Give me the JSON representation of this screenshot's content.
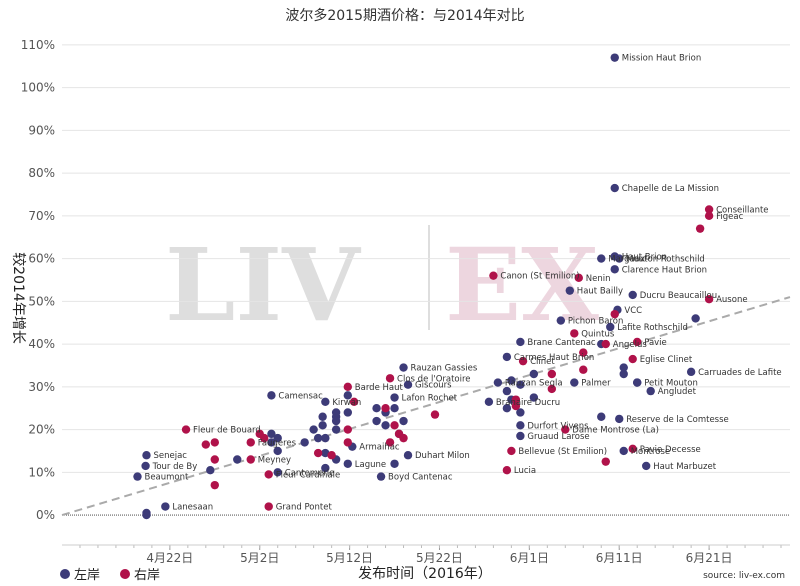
{
  "chart_data": {
    "type": "scatter",
    "title": "波尔多2015期酒价格：与2014年对比",
    "xlabel": "发布时间（2016年）",
    "ylabel": "较2014年增长",
    "source": "source: liv-ex.com",
    "watermark": {
      "left": "LIV",
      "right": "EX"
    },
    "x_ticks": [
      {
        "label": "4月22日",
        "day": 22
      },
      {
        "label": "5月2日",
        "day": 32
      },
      {
        "label": "5月12日",
        "day": 42
      },
      {
        "label": "5月22日",
        "day": 52
      },
      {
        "label": "6月1日",
        "day": 62
      },
      {
        "label": "6月11日",
        "day": 72
      },
      {
        "label": "6月21日",
        "day": 82
      }
    ],
    "y_ticks": [
      "0%",
      "10%",
      "20%",
      "30%",
      "40%",
      "50%",
      "60%",
      "70%",
      "80%",
      "90%",
      "100%",
      "110%"
    ],
    "xlim": [
      10,
      91
    ],
    "ylim": [
      -7,
      113
    ],
    "trendline": [
      [
        10,
        0
      ],
      [
        91,
        51
      ]
    ],
    "colors": {
      "left_bank": "#3d3b78",
      "right_bank": "#b0124a",
      "trend": "#aaaaaa"
    },
    "legend": {
      "position": "bottom-left",
      "items": [
        "左岸",
        "右岸"
      ]
    },
    "series": [
      {
        "name": "左岸",
        "points": [
          [
            19.4,
            0.5,
            ""
          ],
          [
            19.4,
            0,
            ""
          ],
          [
            19.3,
            11.5,
            "Tour de By"
          ],
          [
            19.4,
            14,
            "Senejac"
          ],
          [
            18.4,
            9,
            "Beaumont"
          ],
          [
            21.5,
            2,
            "Lanesaan"
          ],
          [
            26.5,
            10.5,
            ""
          ],
          [
            29.5,
            13,
            ""
          ],
          [
            33.3,
            28,
            "Camensac"
          ],
          [
            33.3,
            17,
            ""
          ],
          [
            34,
            15,
            ""
          ],
          [
            34,
            18,
            ""
          ],
          [
            33.3,
            19,
            ""
          ],
          [
            34,
            10,
            "Cantemerle"
          ],
          [
            37,
            17,
            ""
          ],
          [
            38,
            20,
            ""
          ],
          [
            38.5,
            18,
            ""
          ],
          [
            39.3,
            26.5,
            "Kirwan"
          ],
          [
            39,
            23,
            ""
          ],
          [
            39,
            21,
            ""
          ],
          [
            40.5,
            23,
            ""
          ],
          [
            40.5,
            24,
            ""
          ],
          [
            40.5,
            22,
            ""
          ],
          [
            41.8,
            24,
            ""
          ],
          [
            41.8,
            28,
            ""
          ],
          [
            40.5,
            20,
            ""
          ],
          [
            39.3,
            18,
            ""
          ],
          [
            39.3,
            14.5,
            ""
          ],
          [
            42.3,
            16,
            "Armaihac"
          ],
          [
            40.5,
            13,
            ""
          ],
          [
            41.8,
            12,
            "Lagune"
          ],
          [
            39.3,
            11,
            ""
          ],
          [
            45,
            22,
            ""
          ],
          [
            45,
            25,
            ""
          ],
          [
            46,
            21,
            ""
          ],
          [
            46,
            24,
            ""
          ],
          [
            47,
            25,
            ""
          ],
          [
            47,
            27.5,
            "Lafon Rochet"
          ],
          [
            48,
            34.5,
            "Rauzan Gassies"
          ],
          [
            48.5,
            30.5,
            "Giscours"
          ],
          [
            48,
            22,
            ""
          ],
          [
            47.5,
            19,
            ""
          ],
          [
            48.5,
            14,
            "Duhart Milon"
          ],
          [
            47,
            12,
            ""
          ],
          [
            45.5,
            9,
            "Boyd Cantenac"
          ],
          [
            59.5,
            37,
            "Carmes Haut Brion"
          ],
          [
            58.5,
            31,
            "Rauzan Segla"
          ],
          [
            60,
            31.5,
            ""
          ],
          [
            61,
            30.5,
            ""
          ],
          [
            59.5,
            29,
            ""
          ],
          [
            60,
            27,
            ""
          ],
          [
            59.5,
            25,
            ""
          ],
          [
            57.5,
            26.5,
            "Branaire Ducru"
          ],
          [
            61,
            21,
            "Durfort Vivens"
          ],
          [
            61,
            24,
            ""
          ],
          [
            61,
            18.5,
            "Gruaud Larose"
          ],
          [
            61,
            40.5,
            "Brane Cantenac"
          ],
          [
            66.5,
            52.5,
            "Haut Bailly"
          ],
          [
            65.5,
            45.5,
            "Pichon Baron"
          ],
          [
            62.5,
            33,
            ""
          ],
          [
            62.5,
            27.5,
            ""
          ],
          [
            67,
            31,
            "Palmer"
          ],
          [
            70,
            23,
            ""
          ],
          [
            70,
            40,
            ""
          ],
          [
            71.5,
            107,
            "Mission Haut Brion"
          ],
          [
            71.5,
            76.5,
            "Chapelle de La Mission"
          ],
          [
            70,
            60,
            "Margaux"
          ],
          [
            71.5,
            60.5,
            "Haut Brion"
          ],
          [
            72,
            60,
            "Mouton Rothschild"
          ],
          [
            71.5,
            57.5,
            "Clarence Haut Brion"
          ],
          [
            73.5,
            51.5,
            "Ducru Beaucaillou"
          ],
          [
            71.8,
            48,
            "VCC"
          ],
          [
            71,
            44,
            "Lafite Rothschild"
          ],
          [
            72.5,
            34.5,
            ""
          ],
          [
            72.5,
            33,
            ""
          ],
          [
            74,
            31,
            "Petit Mouton"
          ],
          [
            75.5,
            29,
            "Angludet"
          ],
          [
            72,
            22.5,
            "Reserve de la Comtesse"
          ],
          [
            72.5,
            15,
            "Montrose"
          ],
          [
            75,
            11.5,
            "Haut Marbuzet"
          ],
          [
            80.5,
            46,
            ""
          ],
          [
            80,
            33.5,
            "Carruades de Lafite"
          ],
          [
            74,
            31,
            ""
          ]
        ]
      },
      {
        "name": "右岸",
        "points": [
          [
            23.8,
            20,
            "Fleur de Bouard"
          ],
          [
            26,
            16.5,
            ""
          ],
          [
            27,
            17,
            ""
          ],
          [
            27,
            13,
            ""
          ],
          [
            27,
            7,
            ""
          ],
          [
            31,
            17,
            "Faugeres"
          ],
          [
            32.5,
            18,
            ""
          ],
          [
            32,
            19,
            ""
          ],
          [
            31,
            13,
            "Meyney"
          ],
          [
            33,
            9.5,
            "Fleur Cardinale"
          ],
          [
            33,
            2,
            "Grand Pontet"
          ],
          [
            38.5,
            14.5,
            ""
          ],
          [
            40,
            14,
            ""
          ],
          [
            41.8,
            30,
            "Barde Haut"
          ],
          [
            42.5,
            26.5,
            ""
          ],
          [
            41.8,
            20,
            ""
          ],
          [
            41.8,
            17,
            ""
          ],
          [
            46.5,
            32,
            "Clos de l'Oratoire"
          ],
          [
            46,
            25,
            ""
          ],
          [
            47,
            21,
            ""
          ],
          [
            46.5,
            17,
            ""
          ],
          [
            47.5,
            19,
            ""
          ],
          [
            48,
            18,
            ""
          ],
          [
            51.5,
            23.5,
            ""
          ],
          [
            58,
            56,
            "Canon (St Emilion)"
          ],
          [
            61.3,
            36,
            "Clinet"
          ],
          [
            60.5,
            27,
            ""
          ],
          [
            60.5,
            25.5,
            ""
          ],
          [
            60,
            15,
            "Bellevue (St Emilion)"
          ],
          [
            59.5,
            10.5,
            "Lucia"
          ],
          [
            64.5,
            33,
            ""
          ],
          [
            64.5,
            29.5,
            ""
          ],
          [
            66,
            20,
            "Dame Montrose (La)"
          ],
          [
            67.5,
            55.5,
            "Nenin"
          ],
          [
            67,
            42.5,
            "Quintus"
          ],
          [
            70.5,
            40,
            "Angelus"
          ],
          [
            68,
            38,
            ""
          ],
          [
            68,
            34,
            ""
          ],
          [
            71.5,
            47,
            ""
          ],
          [
            74,
            40.5,
            "Pavie"
          ],
          [
            73.5,
            36.5,
            "Eglise Clinet"
          ],
          [
            73.5,
            15.5,
            "Pavie Decesse"
          ],
          [
            70.5,
            12.5,
            ""
          ],
          [
            82,
            71.5,
            "Conseillante"
          ],
          [
            82,
            70,
            "Figeac"
          ],
          [
            81,
            67,
            ""
          ],
          [
            82,
            50.5,
            "Ausone"
          ]
        ]
      }
    ]
  }
}
